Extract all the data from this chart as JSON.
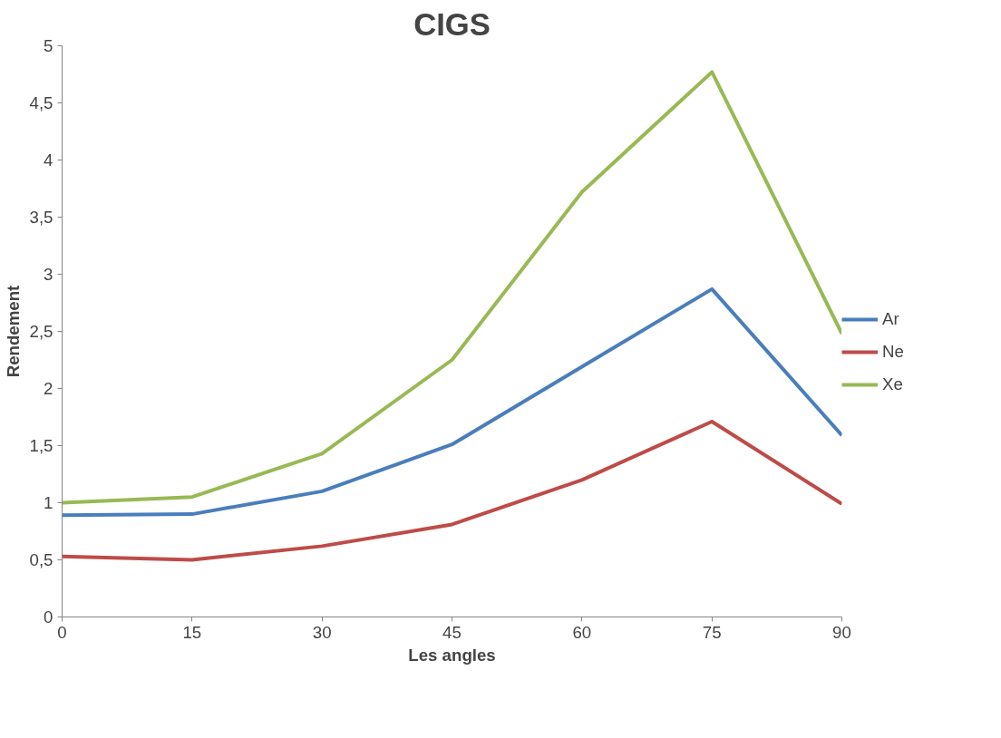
{
  "chart_data": {
    "type": "line",
    "title": "CIGS",
    "xlabel": "Les angles",
    "ylabel": "Rendement",
    "x": [
      0,
      15,
      30,
      45,
      60,
      75,
      90
    ],
    "series": [
      {
        "name": "Ar",
        "color": "#4a7ebb",
        "values": [
          0.89,
          0.9,
          1.1,
          1.51,
          2.19,
          2.87,
          1.59
        ]
      },
      {
        "name": "Ne",
        "color": "#be4b48",
        "values": [
          0.53,
          0.5,
          0.62,
          0.81,
          1.2,
          1.71,
          0.99
        ]
      },
      {
        "name": "Xe",
        "color": "#98b954",
        "values": [
          1.0,
          1.05,
          1.43,
          2.25,
          3.72,
          4.77,
          2.48
        ]
      }
    ],
    "xlim": [
      0,
      90
    ],
    "xticks": [
      0,
      15,
      30,
      45,
      60,
      75,
      90
    ],
    "ylim": [
      0,
      5
    ],
    "yticks": [
      0,
      {
        "value": 0.5,
        "label": "0,5"
      },
      1,
      {
        "value": 1.5,
        "label": "1,5"
      },
      2,
      {
        "value": 2.5,
        "label": "2,5"
      },
      3,
      {
        "value": 3.5,
        "label": "3,5"
      },
      4,
      {
        "value": 4.5,
        "label": "4,5"
      },
      5
    ],
    "grid": false,
    "legend": "right",
    "line_style": "solid",
    "marker": "none"
  }
}
